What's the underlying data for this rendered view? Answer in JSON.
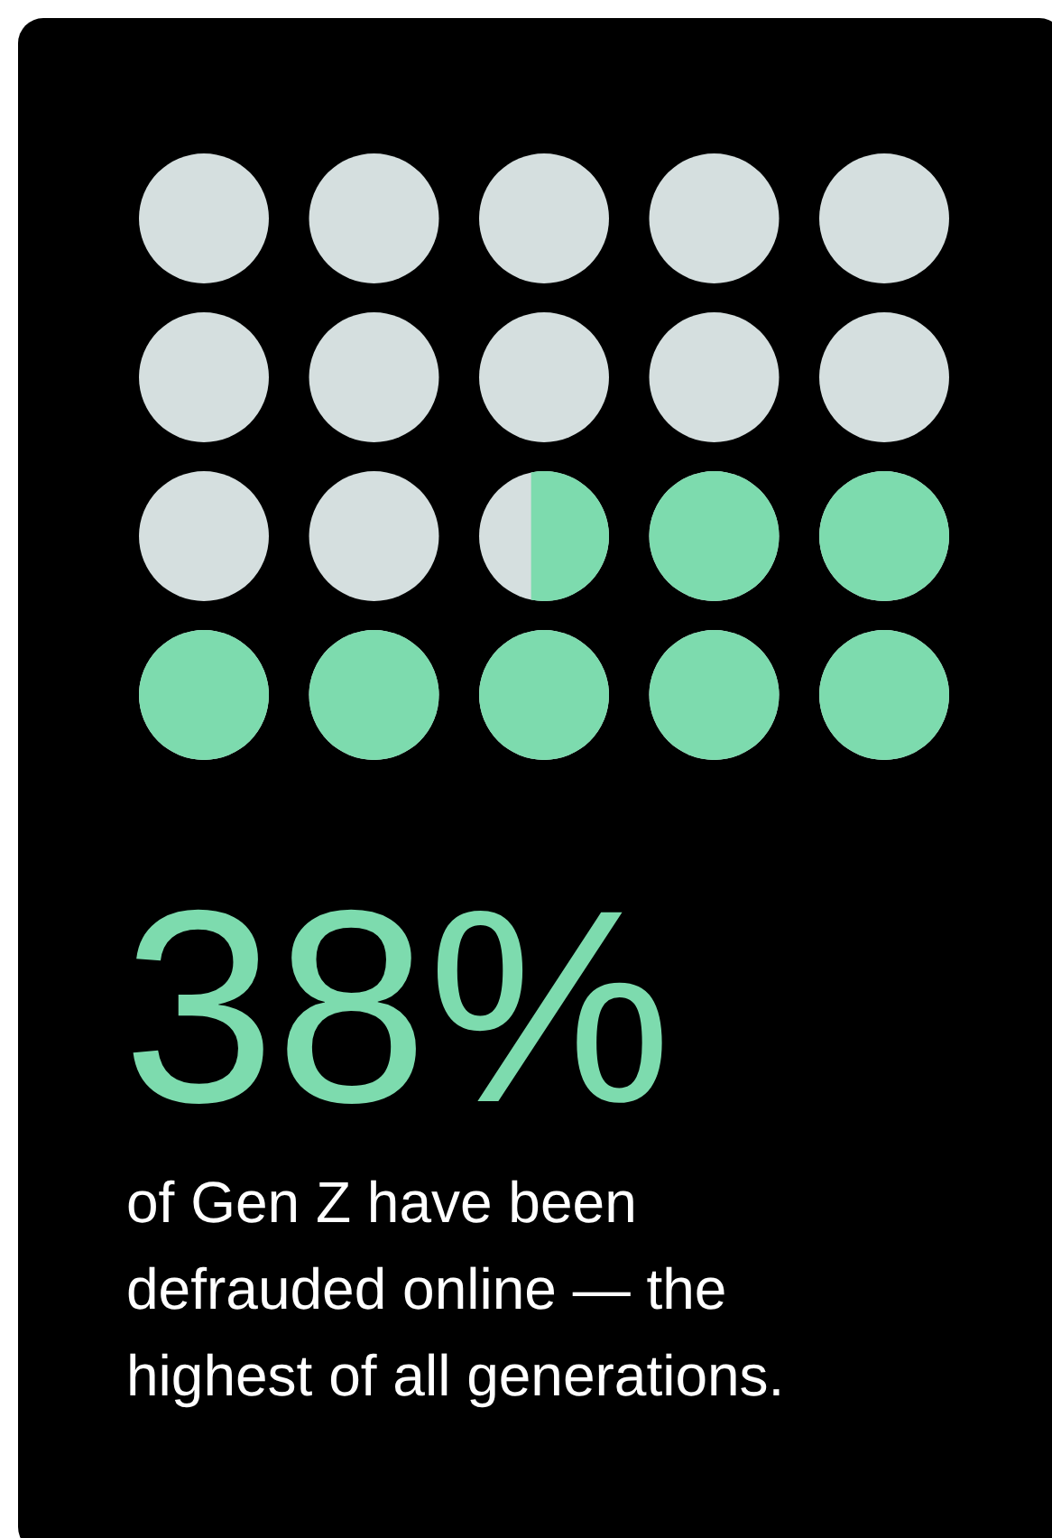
{
  "chart_data": {
    "type": "other",
    "categories": [
      null
    ],
    "values": [
      38
    ],
    "colors": [
      "#7ddbae"
    ],
    "value_labels": [
      "38%"
    ],
    "annotations": [
      "of Gen Z have been defrauded online — the highest of all generations."
    ]
  }
}
